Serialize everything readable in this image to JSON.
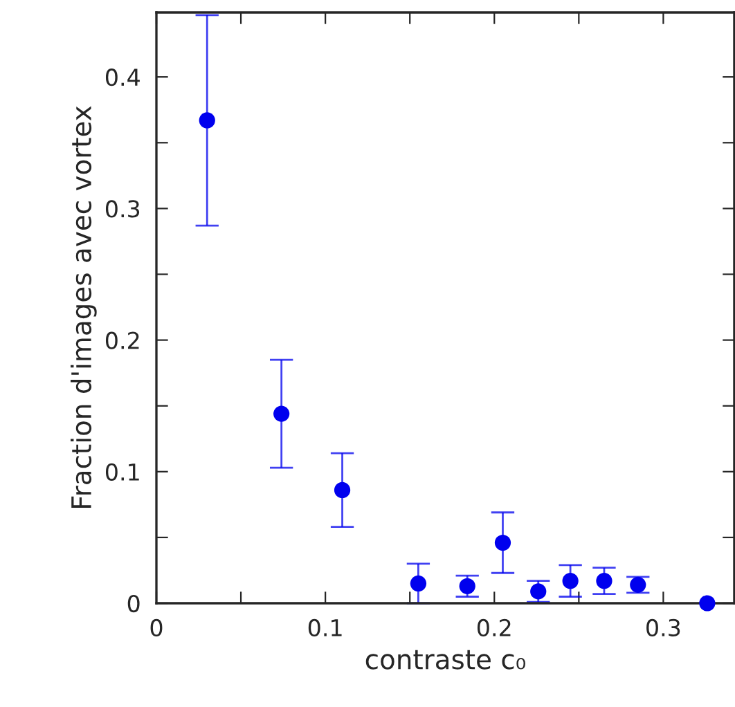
{
  "chart_data": {
    "type": "scatter",
    "xlabel": "contraste c₀",
    "ylabel": "Fraction d'images avec vortex",
    "x": [
      0.03,
      0.074,
      0.11,
      0.155,
      0.184,
      0.205,
      0.226,
      0.245,
      0.265,
      0.285,
      0.326
    ],
    "series": [
      {
        "color": "#0000ee",
        "values": [
          0.367,
          0.144,
          0.086,
          0.015,
          0.013,
          0.046,
          0.009,
          0.017,
          0.017,
          0.014,
          0
        ],
        "errors": [
          [
            0.287,
            0.447
          ],
          [
            0.103,
            0.185
          ],
          [
            0.058,
            0.114
          ],
          [
            0,
            0.03
          ],
          [
            0.005,
            0.021
          ],
          [
            0.023,
            0.069
          ],
          [
            0.001,
            0.017
          ],
          [
            0.005,
            0.029
          ],
          [
            0.007,
            0.027
          ],
          [
            0.008,
            0.02
          ],
          null
        ]
      }
    ],
    "marker": "circle",
    "xlim": [
      0,
      0.342
    ],
    "ylim": [
      0,
      0.449
    ],
    "xticks": [
      0,
      {
        "value": 0.05,
        "label": null
      },
      0.1,
      {
        "value": 0.15,
        "label": null
      },
      0.2,
      {
        "value": 0.25,
        "label": null
      },
      0.3
    ],
    "yticks": [
      0,
      {
        "value": 0.05,
        "label": null
      },
      0.1,
      {
        "value": 0.15,
        "label": null
      },
      0.2,
      {
        "value": 0.25,
        "label": null
      },
      0.3,
      {
        "value": 0.35,
        "label": null
      },
      0.4
    ],
    "grid": false,
    "legend": false
  }
}
